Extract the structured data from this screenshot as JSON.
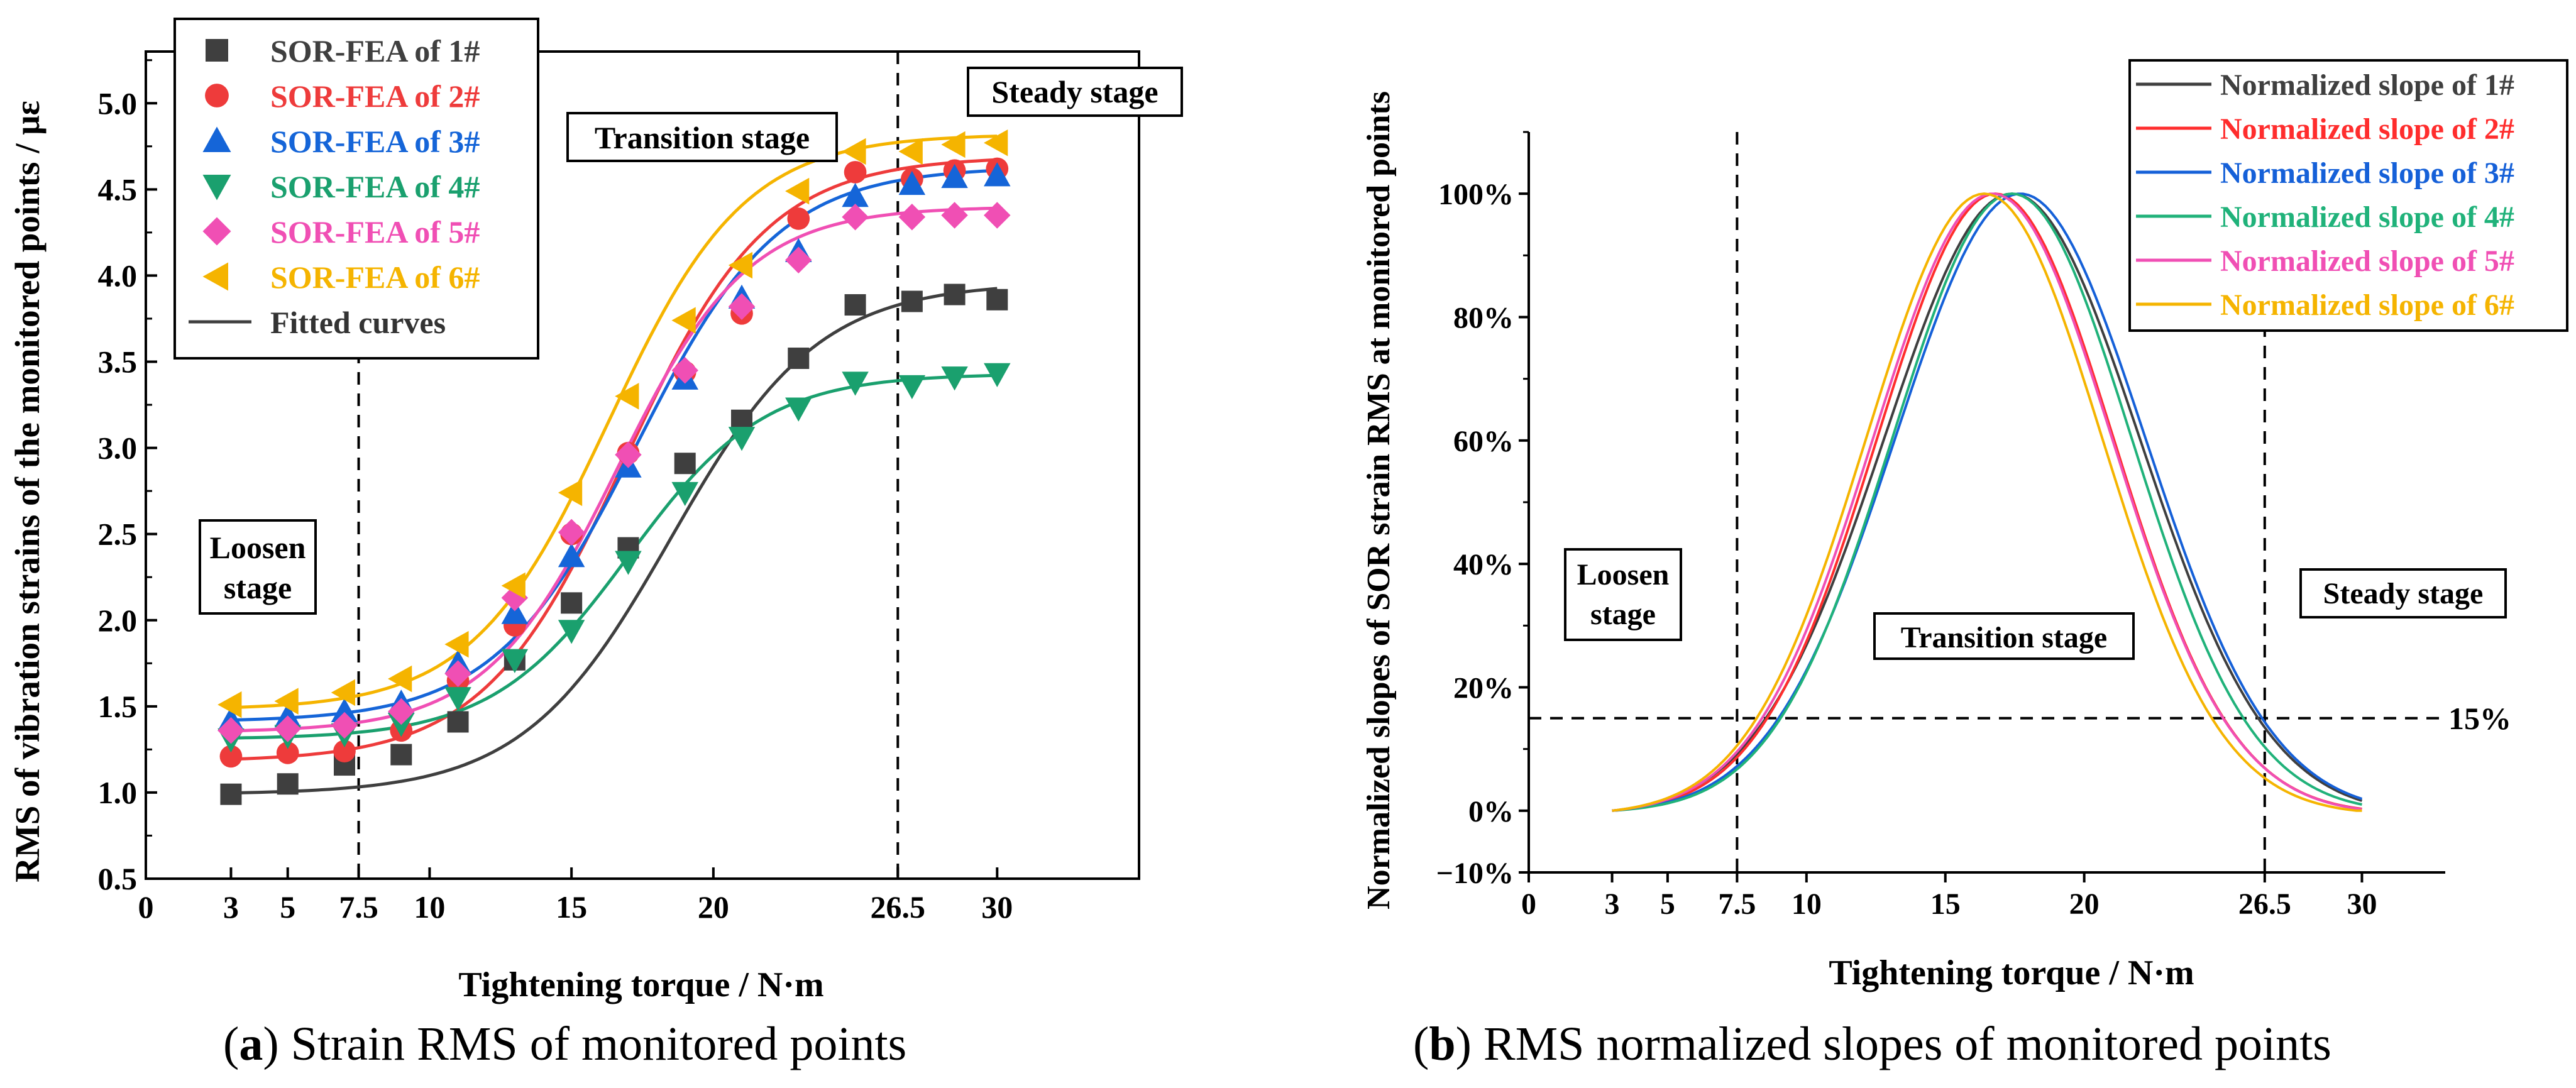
{
  "panel_a": {
    "caption_letter": "a",
    "caption_text": "Strain RMS of monitored points",
    "loosen_label_1": "Loosen",
    "loosen_label_2": "stage",
    "transition_label": "Transition stage",
    "steady_label": "Steady stage"
  },
  "panel_b": {
    "caption_letter": "b",
    "caption_text": "RMS normalized slopes of monitored points",
    "loosen_label_1": "Loosen",
    "loosen_label_2": "stage",
    "transition_label": "Transition stage",
    "steady_label": "Steady stage",
    "threshold_label": "15%"
  },
  "chart_data": [
    {
      "type": "scatter",
      "title": "",
      "xlabel": "Tightening torque / N·m",
      "ylabel": "RMS of vibration strains of the monitored points / με",
      "xlim": [
        0,
        35
      ],
      "ylim": [
        0.5,
        5.3
      ],
      "xticks": [
        0,
        3,
        5,
        7.5,
        10,
        15,
        20,
        26.5,
        30
      ],
      "xtick_labels": [
        "0",
        "3",
        "5",
        "7.5",
        "10",
        "15",
        "20",
        "26.5",
        "30"
      ],
      "yticks": [
        0.5,
        1.0,
        1.5,
        2.0,
        2.5,
        3.0,
        3.5,
        4.0,
        4.5,
        5.0
      ],
      "ytick_labels": [
        "0.5",
        "1.0",
        "1.5",
        "2.0",
        "2.5",
        "3.0",
        "3.5",
        "4.0",
        "4.5",
        "5.0"
      ],
      "vlines": [
        7.5,
        26.5
      ],
      "x": [
        3,
        5,
        7,
        9,
        11,
        13,
        15,
        17,
        19,
        21,
        23,
        25,
        27,
        28.5,
        30
      ],
      "series": [
        {
          "name": "SOR-FEA of 1#",
          "color": "#3f3f3f",
          "marker": "square",
          "values": [
            0.99,
            1.05,
            1.16,
            1.22,
            1.41,
            1.77,
            2.1,
            2.42,
            2.91,
            3.16,
            3.52,
            3.83,
            3.85,
            3.89,
            3.86
          ],
          "fit": {
            "A1": 0.99,
            "A2": 3.96,
            "x0": 18.5,
            "dx": 2.6
          }
        },
        {
          "name": "SOR-FEA of 2#",
          "color": "#ee3b3b",
          "marker": "circle",
          "values": [
            1.21,
            1.23,
            1.24,
            1.36,
            1.65,
            1.97,
            2.5,
            2.97,
            3.44,
            3.78,
            4.33,
            4.6,
            4.56,
            4.61,
            4.62
          ],
          "fit": {
            "A1": 1.18,
            "A2": 4.69,
            "x0": 16.9,
            "dx": 2.5
          }
        },
        {
          "name": "SOR-FEA of 3#",
          "color": "#1565d8",
          "marker": "triangle-up",
          "values": [
            1.42,
            1.44,
            1.47,
            1.52,
            1.75,
            2.04,
            2.37,
            2.89,
            3.4,
            3.87,
            4.14,
            4.46,
            4.53,
            4.57,
            4.58
          ],
          "fit": {
            "A1": 1.41,
            "A2": 4.63,
            "x0": 17.3,
            "dx": 2.5
          }
        },
        {
          "name": "SOR-FEA of 4#",
          "color": "#1aa06e",
          "marker": "triangle-down",
          "values": [
            1.31,
            1.33,
            1.34,
            1.4,
            1.55,
            1.77,
            1.94,
            2.34,
            2.74,
            3.06,
            3.23,
            3.38,
            3.36,
            3.41,
            3.43
          ],
          "fit": {
            "A1": 1.31,
            "A2": 3.43,
            "x0": 17.0,
            "dx": 2.4
          }
        },
        {
          "name": "SOR-FEA of 5#",
          "color": "#f04fb4",
          "marker": "diamond",
          "values": [
            1.36,
            1.37,
            1.39,
            1.47,
            1.69,
            2.13,
            2.51,
            2.96,
            3.45,
            3.82,
            4.09,
            4.34,
            4.34,
            4.35,
            4.35
          ],
          "fit": {
            "A1": 1.35,
            "A2": 4.4,
            "x0": 16.6,
            "dx": 2.3
          }
        },
        {
          "name": "SOR-FEA of 6#",
          "color": "#f5b400",
          "marker": "triangle-left",
          "values": [
            1.51,
            1.53,
            1.58,
            1.66,
            1.86,
            2.2,
            2.74,
            3.3,
            3.74,
            4.06,
            4.49,
            4.72,
            4.72,
            4.76,
            4.77
          ],
          "fit": {
            "A1": 1.48,
            "A2": 4.82,
            "x0": 16.3,
            "dx": 2.4
          }
        }
      ],
      "fit_label": "Fitted curves",
      "legend": "top-left"
    },
    {
      "type": "line",
      "title": "",
      "xlabel": "Tightening torque / N·m",
      "ylabel": "Normalized slopes of SOR strain RMS at monitored points",
      "xlim": [
        0,
        33
      ],
      "ylim": [
        -10,
        110
      ],
      "xticks": [
        0,
        3,
        5,
        7.5,
        10,
        15,
        20,
        26.5,
        30
      ],
      "xtick_labels": [
        "0",
        "3",
        "5",
        "7.5",
        "10",
        "15",
        "20",
        "26.5",
        "30"
      ],
      "yticks": [
        -10,
        0,
        20,
        40,
        60,
        80,
        100
      ],
      "ytick_labels": [
        "−10%",
        "0%",
        "20%",
        "40%",
        "60%",
        "80%",
        "100%"
      ],
      "vlines": [
        7.5,
        26.5
      ],
      "hline": 15,
      "x_range": [
        3,
        30
      ],
      "series": [
        {
          "name": "Normalized slope of 1#",
          "color": "#3f3f3f",
          "peak_x": 17.4,
          "width": 4.6
        },
        {
          "name": "Normalized slope of 2#",
          "color": "#ff2d2d",
          "peak_x": 16.8,
          "width": 4.25
        },
        {
          "name": "Normalized slope of 3#",
          "color": "#1560d8",
          "peak_x": 17.7,
          "width": 4.5
        },
        {
          "name": "Normalized slope of 4#",
          "color": "#20b27a",
          "peak_x": 17.4,
          "width": 4.3
        },
        {
          "name": "Normalized slope of 5#",
          "color": "#f04fb4",
          "peak_x": 16.7,
          "width": 4.3
        },
        {
          "name": "Normalized slope of 6#",
          "color": "#f5b400",
          "peak_x": 16.4,
          "width": 4.25
        }
      ],
      "legend": "top-right"
    }
  ]
}
